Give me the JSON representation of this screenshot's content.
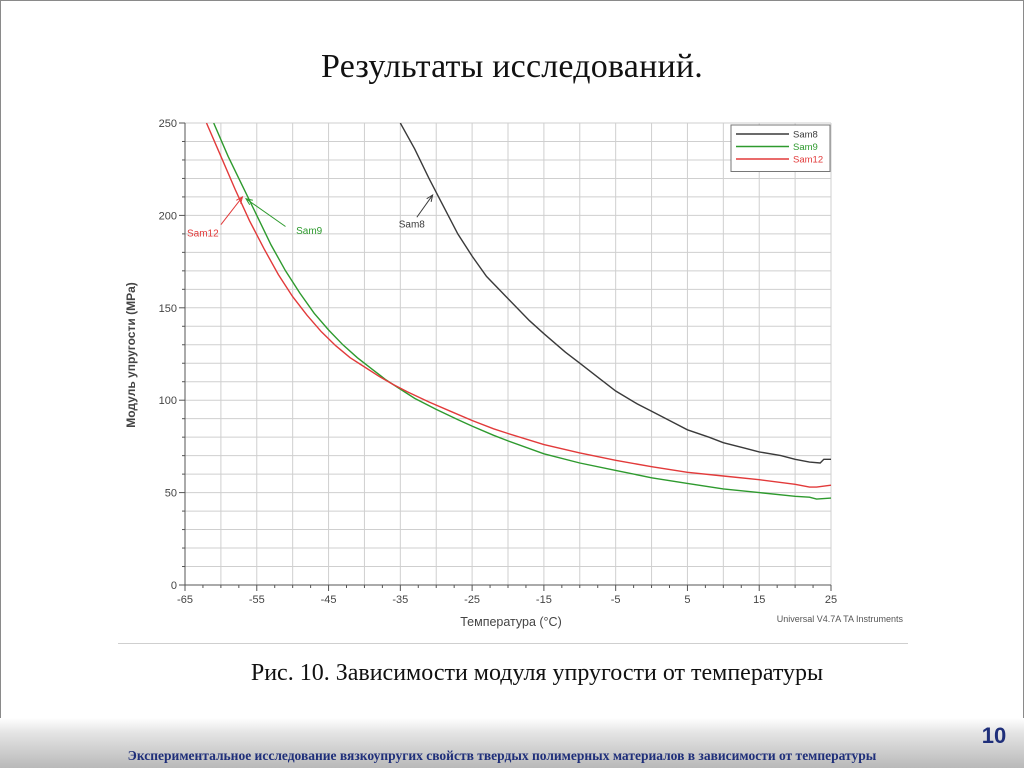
{
  "slide": {
    "title": "Результаты исследований.",
    "caption": "Рис. 10. Зависимости модуля упругости от температуры",
    "footer": "Экспериментальное исследование вязкоупругих свойств твердых полимерных материалов в зависимости от температуры",
    "page_number": "10"
  },
  "chart_data": {
    "type": "line",
    "title": "",
    "xlabel": "Температура (°C)",
    "ylabel": "Модуль упругости (MPa)",
    "xlim": [
      -65,
      25
    ],
    "ylim": [
      0,
      250
    ],
    "x_ticks": [
      "-65",
      "-55",
      "-45",
      "-35",
      "-25",
      "-15",
      "-5",
      "5",
      "15",
      "25"
    ],
    "y_ticks": [
      "0",
      "50",
      "100",
      "150",
      "200",
      "250"
    ],
    "grid": true,
    "legend": "top-right",
    "watermark": "Universal V4.7A TA Instruments",
    "series": [
      {
        "name": "Sam8",
        "color": "#3a3a3a",
        "points": [
          [
            -35,
            250
          ],
          [
            -33,
            236
          ],
          [
            -31,
            220
          ],
          [
            -29,
            205
          ],
          [
            -27,
            190
          ],
          [
            -25,
            178
          ],
          [
            -23,
            167
          ],
          [
            -20,
            155
          ],
          [
            -17,
            143
          ],
          [
            -15,
            136
          ],
          [
            -12,
            126
          ],
          [
            -10,
            120
          ],
          [
            -7,
            111
          ],
          [
            -5,
            105
          ],
          [
            -2,
            98
          ],
          [
            0,
            94
          ],
          [
            3,
            88
          ],
          [
            5,
            84
          ],
          [
            8,
            80
          ],
          [
            10,
            77
          ],
          [
            13,
            74
          ],
          [
            15,
            72
          ],
          [
            18,
            70
          ],
          [
            20,
            68
          ],
          [
            22,
            66.5
          ],
          [
            23.5,
            66
          ],
          [
            24,
            68
          ],
          [
            25,
            68
          ]
        ]
      },
      {
        "name": "Sam9",
        "color": "#2e9a2e",
        "points": [
          [
            -61,
            250
          ],
          [
            -59,
            232
          ],
          [
            -57,
            216
          ],
          [
            -55,
            200
          ],
          [
            -53,
            184
          ],
          [
            -51,
            170
          ],
          [
            -49,
            158
          ],
          [
            -47,
            147
          ],
          [
            -45,
            138
          ],
          [
            -43,
            130
          ],
          [
            -41,
            123
          ],
          [
            -39,
            117
          ],
          [
            -37,
            111
          ],
          [
            -35,
            106
          ],
          [
            -33,
            101
          ],
          [
            -30,
            95
          ],
          [
            -27,
            89.5
          ],
          [
            -25,
            86
          ],
          [
            -22,
            81
          ],
          [
            -20,
            78
          ],
          [
            -15,
            71
          ],
          [
            -10,
            66
          ],
          [
            -5,
            62
          ],
          [
            0,
            58
          ],
          [
            5,
            55
          ],
          [
            10,
            52
          ],
          [
            15,
            50
          ],
          [
            20,
            48
          ],
          [
            22,
            47.5
          ],
          [
            23,
            46.5
          ],
          [
            25,
            47
          ]
        ]
      },
      {
        "name": "Sam12",
        "color": "#e23a3a",
        "points": [
          [
            -62,
            250
          ],
          [
            -60,
            232
          ],
          [
            -58,
            214
          ],
          [
            -56,
            197
          ],
          [
            -54,
            182
          ],
          [
            -52,
            168
          ],
          [
            -50,
            156
          ],
          [
            -48,
            146
          ],
          [
            -46,
            137
          ],
          [
            -44,
            129.5
          ],
          [
            -42,
            123
          ],
          [
            -40,
            118
          ],
          [
            -38,
            113
          ],
          [
            -36,
            108.5
          ],
          [
            -34,
            104.5
          ],
          [
            -31,
            99
          ],
          [
            -28,
            94
          ],
          [
            -25,
            89
          ],
          [
            -22,
            84.5
          ],
          [
            -20,
            82
          ],
          [
            -15,
            76
          ],
          [
            -10,
            71.5
          ],
          [
            -5,
            67.5
          ],
          [
            0,
            64
          ],
          [
            5,
            61
          ],
          [
            10,
            59
          ],
          [
            15,
            57
          ],
          [
            20,
            54.5
          ],
          [
            22,
            53
          ],
          [
            23,
            53
          ],
          [
            25,
            54
          ]
        ]
      }
    ],
    "annotations": [
      {
        "text": "Sam8",
        "color": "#3a3a3a",
        "text_at": [
          -35.5,
          193.5
        ],
        "arrow_from": [
          -32.7,
          199
        ],
        "arrow_to": [
          -30.5,
          211
        ]
      },
      {
        "text": "Sam9",
        "color": "#2e9a2e",
        "text_at": [
          -49.8,
          190
        ],
        "arrow_from": [
          -51,
          194
        ],
        "arrow_to": [
          -56.5,
          209
        ]
      },
      {
        "text": "Sam12",
        "color": "#e23a3a",
        "text_at": [
          -65,
          188.5
        ],
        "arrow_from": [
          -60,
          195
        ],
        "arrow_to": [
          -57,
          210
        ]
      }
    ]
  }
}
